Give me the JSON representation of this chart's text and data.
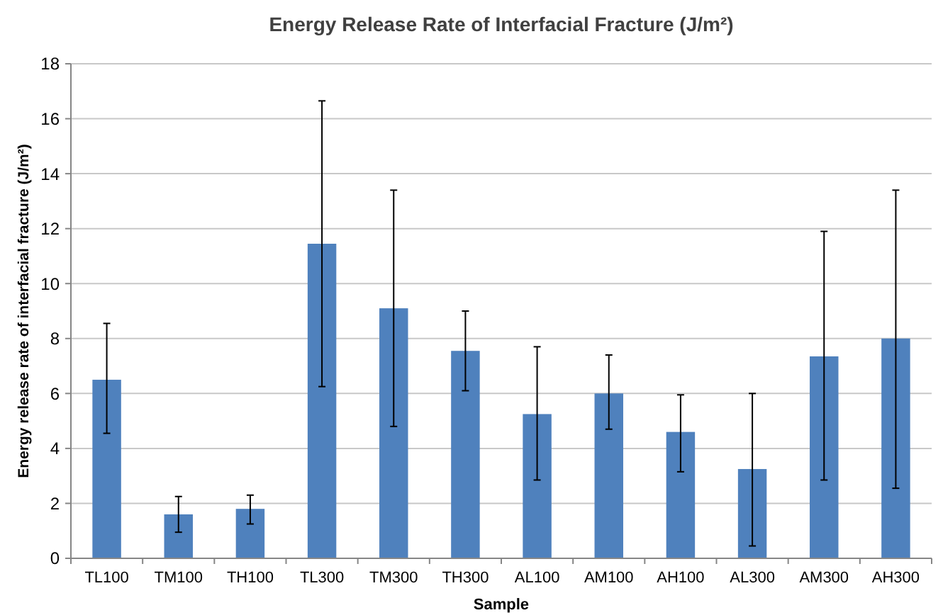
{
  "chart_data": {
    "type": "bar",
    "title": "Energy Release Rate of Interfacial Fracture (J/m²)",
    "xlabel": "Sample",
    "ylabel": "Energy release rate of interfacial fracture (J/m²)",
    "categories": [
      "TL100",
      "TM100",
      "TH100",
      "TL300",
      "TM300",
      "TH300",
      "AL100",
      "AM100",
      "AH100",
      "AL300",
      "AM300",
      "AH300"
    ],
    "values": [
      6.5,
      1.6,
      1.8,
      11.45,
      9.1,
      7.55,
      5.25,
      6.0,
      4.6,
      3.25,
      7.35,
      8.0
    ],
    "errors": [
      [
        4.55,
        8.55
      ],
      [
        0.95,
        2.25
      ],
      [
        1.25,
        2.3
      ],
      [
        6.25,
        16.65
      ],
      [
        4.8,
        13.4
      ],
      [
        6.1,
        9.0
      ],
      [
        2.85,
        7.7
      ],
      [
        4.7,
        7.4
      ],
      [
        3.15,
        5.95
      ],
      [
        0.45,
        6.0
      ],
      [
        2.85,
        11.9
      ],
      [
        2.55,
        13.4
      ]
    ],
    "color": "#4f81bd",
    "ylim": [
      0,
      18
    ],
    "yticks": [
      0,
      2,
      4,
      6,
      8,
      10,
      12,
      14,
      16,
      18
    ],
    "grid": "y"
  }
}
